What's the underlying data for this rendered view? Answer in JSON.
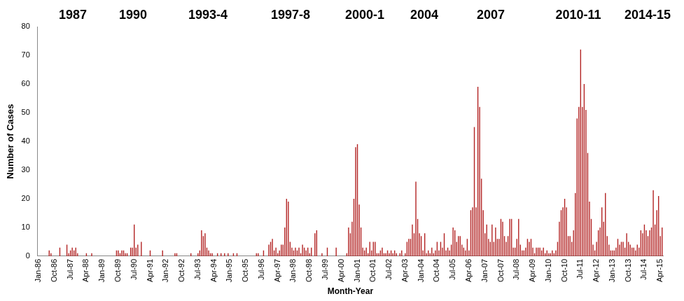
{
  "chart_data": {
    "type": "bar",
    "x_label": "Month-Year",
    "y_label": "Number of Cases",
    "annotations": [
      "1987",
      "1990",
      "1993-4",
      "1997-8",
      "2000-1",
      "2004",
      "2007",
      "2010-11",
      "2014-15"
    ],
    "color": "#b22222",
    "ylim": [
      0,
      80
    ],
    "yticks": [
      0,
      10,
      20,
      30,
      40,
      50,
      60,
      70,
      80
    ],
    "grid": false,
    "categories": [
      "Jan-86",
      null,
      null,
      null,
      null,
      null,
      null,
      null,
      null,
      "Oct-86",
      null,
      null,
      null,
      null,
      null,
      null,
      null,
      null,
      "Jul-87",
      null,
      null,
      null,
      null,
      null,
      null,
      null,
      null,
      "Apr-88",
      null,
      null,
      null,
      null,
      null,
      null,
      null,
      null,
      "Jan-89",
      null,
      null,
      null,
      null,
      null,
      null,
      null,
      null,
      "Oct-89",
      null,
      null,
      null,
      null,
      null,
      null,
      null,
      null,
      "Jul-90",
      null,
      null,
      null,
      null,
      null,
      null,
      null,
      null,
      "Apr-91",
      null,
      null,
      null,
      null,
      null,
      null,
      null,
      null,
      "Jan-92",
      null,
      null,
      null,
      null,
      null,
      null,
      null,
      null,
      "Oct-92",
      null,
      null,
      null,
      null,
      null,
      null,
      null,
      null,
      "Jul-93",
      null,
      null,
      null,
      null,
      null,
      null,
      null,
      null,
      "Apr-94",
      null,
      null,
      null,
      null,
      null,
      null,
      null,
      null,
      "Jan-95",
      null,
      null,
      null,
      null,
      null,
      null,
      null,
      null,
      "Oct-95",
      null,
      null,
      null,
      null,
      null,
      null,
      null,
      null,
      "Jul-96",
      null,
      null,
      null,
      null,
      null,
      null,
      null,
      null,
      "Apr-97",
      null,
      null,
      null,
      null,
      null,
      null,
      null,
      null,
      "Jan-98",
      null,
      null,
      null,
      null,
      null,
      null,
      null,
      null,
      "Oct-98",
      null,
      null,
      null,
      null,
      null,
      null,
      null,
      null,
      "Jul-99",
      null,
      null,
      null,
      null,
      null,
      null,
      null,
      null,
      "Apr-00",
      null,
      null,
      null,
      null,
      null,
      null,
      null,
      null,
      "Jan-01",
      null,
      null,
      null,
      null,
      null,
      null,
      null,
      null,
      "Oct-01",
      null,
      null,
      null,
      null,
      null,
      null,
      null,
      null,
      "Jul-02",
      null,
      null,
      null,
      null,
      null,
      null,
      null,
      null,
      "Apr-03",
      null,
      null,
      null,
      null,
      null,
      null,
      null,
      null,
      "Jan-04",
      null,
      null,
      null,
      null,
      null,
      null,
      null,
      null,
      "Oct-04",
      null,
      null,
      null,
      null,
      null,
      null,
      null,
      null,
      "Jul-05",
      null,
      null,
      null,
      null,
      null,
      null,
      null,
      null,
      "Apr-06",
      null,
      null,
      null,
      null,
      null,
      null,
      null,
      null,
      "Jan-07",
      null,
      null,
      null,
      null,
      null,
      null,
      null,
      null,
      "Oct-07",
      null,
      null,
      null,
      null,
      null,
      null,
      null,
      null,
      "Jul-08",
      null,
      null,
      null,
      null,
      null,
      null,
      null,
      null,
      "Apr-09",
      null,
      null,
      null,
      null,
      null,
      null,
      null,
      null,
      "Jan-10",
      null,
      null,
      null,
      null,
      null,
      null,
      null,
      null,
      "Oct-10",
      null,
      null,
      null,
      null,
      null,
      null,
      null,
      null,
      "Jul-11",
      null,
      null,
      null,
      null,
      null,
      null,
      null,
      null,
      "Apr-12",
      null,
      null,
      null,
      null,
      null,
      null,
      null,
      null,
      "Jan-13",
      null,
      null,
      null,
      null,
      null,
      null,
      null,
      null,
      "Oct-13",
      null,
      null,
      null,
      null,
      null,
      null,
      null,
      null,
      "Jul-14",
      null,
      null,
      null,
      null,
      null,
      null,
      null,
      null,
      "Apr-15",
      null
    ],
    "values": [
      0,
      0,
      0,
      0,
      0,
      0,
      2,
      1,
      0,
      0,
      0,
      0,
      3,
      0,
      0,
      0,
      4,
      1,
      2,
      3,
      2,
      3,
      1,
      0,
      0,
      0,
      0,
      1,
      0,
      0,
      1,
      0,
      0,
      0,
      0,
      0,
      0,
      0,
      0,
      0,
      0,
      0,
      0,
      0,
      2,
      2,
      1,
      2,
      2,
      1,
      1,
      0,
      3,
      3,
      11,
      3,
      4,
      0,
      5,
      0,
      0,
      0,
      0,
      2,
      0,
      0,
      0,
      0,
      0,
      0,
      2,
      0,
      0,
      0,
      0,
      0,
      0,
      1,
      1,
      0,
      0,
      0,
      0,
      0,
      0,
      0,
      1,
      0,
      0,
      0,
      1,
      2,
      9,
      7,
      8,
      3,
      2,
      1,
      1,
      0,
      0,
      1,
      0,
      1,
      0,
      1,
      0,
      1,
      0,
      0,
      1,
      0,
      1,
      0,
      0,
      0,
      0,
      0,
      0,
      0,
      0,
      0,
      0,
      1,
      1,
      0,
      0,
      2,
      0,
      0,
      4,
      5,
      6,
      2,
      3,
      1,
      2,
      4,
      4,
      10,
      20,
      19,
      5,
      3,
      2,
      3,
      2,
      3,
      1,
      4,
      3,
      2,
      3,
      1,
      3,
      0,
      8,
      9,
      0,
      0,
      1,
      0,
      0,
      3,
      0,
      0,
      0,
      0,
      3,
      0,
      0,
      0,
      0,
      0,
      1,
      10,
      8,
      12,
      20,
      38,
      39,
      18,
      10,
      3,
      2,
      3,
      1,
      5,
      2,
      5,
      5,
      1,
      1,
      2,
      3,
      1,
      1,
      2,
      1,
      2,
      1,
      2,
      1,
      0,
      1,
      2,
      0,
      1,
      5,
      6,
      6,
      11,
      8,
      26,
      13,
      8,
      7,
      2,
      8,
      1,
      2,
      1,
      3,
      1,
      2,
      5,
      2,
      5,
      3,
      8,
      2,
      3,
      2,
      4,
      10,
      9,
      5,
      7,
      7,
      4,
      3,
      2,
      6,
      2,
      16,
      17,
      45,
      17,
      59,
      52,
      27,
      16,
      8,
      11,
      6,
      5,
      11,
      5,
      10,
      6,
      6,
      13,
      12,
      7,
      5,
      7,
      13,
      13,
      3,
      3,
      6,
      13,
      4,
      2,
      2,
      3,
      6,
      5,
      6,
      3,
      1,
      3,
      3,
      3,
      2,
      3,
      1,
      2,
      1,
      1,
      2,
      1,
      2,
      5,
      12,
      16,
      17,
      20,
      17,
      7,
      7,
      5,
      9,
      22,
      48,
      52,
      72,
      52,
      60,
      51,
      36,
      19,
      13,
      4,
      2,
      5,
      9,
      10,
      17,
      12,
      22,
      7,
      4,
      2,
      2,
      2,
      3,
      6,
      4,
      5,
      5,
      3,
      8,
      5,
      4,
      3,
      3,
      2,
      4,
      3,
      9,
      8,
      11,
      9,
      7,
      9,
      10,
      23,
      11,
      16,
      21,
      7,
      10
    ]
  }
}
